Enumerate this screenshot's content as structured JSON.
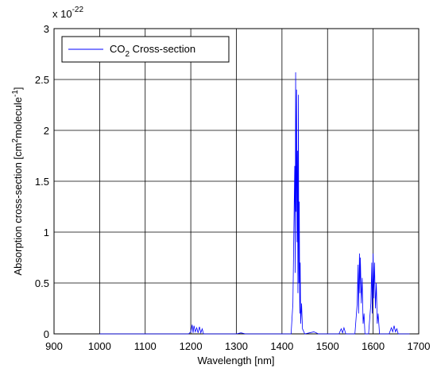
{
  "chart_data": {
    "type": "line",
    "xlabel": "Wavelength [nm]",
    "ylabel_parts": [
      "Absorption cross-section [cm",
      "2",
      "molecule",
      "-1",
      "]"
    ],
    "exponent_base": "x 10",
    "exponent_power": "-22",
    "legend_parts": [
      "CO",
      "2",
      " Cross-section"
    ],
    "x": [
      1000,
      1100,
      1195,
      1200,
      1203,
      1205,
      1207,
      1210,
      1213,
      1216,
      1219,
      1222,
      1225,
      1228,
      1300,
      1310,
      1320,
      1420,
      1424,
      1426,
      1428,
      1429,
      1430,
      1431,
      1432,
      1433,
      1434,
      1435,
      1436,
      1437,
      1438,
      1439,
      1440,
      1441,
      1443,
      1445,
      1450,
      1470,
      1480,
      1525,
      1530,
      1533,
      1536,
      1540,
      1560,
      1565,
      1567,
      1568,
      1570,
      1571,
      1572,
      1574,
      1576,
      1578,
      1580,
      1582,
      1590,
      1595,
      1597,
      1598,
      1600,
      1601,
      1603,
      1605,
      1607,
      1609,
      1611,
      1614,
      1635,
      1640,
      1643,
      1646,
      1649,
      1652,
      1655,
      1680
    ],
    "series": [
      {
        "color": "#0000ff",
        "values": [
          0,
          0,
          0,
          0.02,
          0.09,
          0.01,
          0.08,
          0.02,
          0.06,
          0.01,
          0.07,
          0.01,
          0.05,
          0,
          0,
          0.01,
          0,
          0,
          0.3,
          1.0,
          1.65,
          0.6,
          2.57,
          1.2,
          2.4,
          0.9,
          1.8,
          0.4,
          2.35,
          0.5,
          1.3,
          0.2,
          0.7,
          0.1,
          0.3,
          0.05,
          0,
          0.02,
          0,
          0,
          0.05,
          0.01,
          0.06,
          0,
          0,
          0.3,
          0.68,
          0.2,
          0.79,
          0.4,
          0.75,
          0.3,
          0.55,
          0.1,
          0.2,
          0,
          0,
          0.3,
          0.7,
          0.2,
          0.79,
          0.35,
          0.7,
          0.25,
          0.5,
          0.1,
          0.2,
          0,
          0,
          0.06,
          0.02,
          0.08,
          0.02,
          0.05,
          0,
          0
        ]
      }
    ],
    "xlim": [
      900,
      1700
    ],
    "xticks": [
      900,
      1000,
      1100,
      1200,
      1300,
      1400,
      1500,
      1600,
      1700
    ],
    "ylim": [
      0,
      3
    ],
    "yticks": [
      0,
      0.5,
      1,
      1.5,
      2,
      2.5,
      3
    ],
    "grid": true
  }
}
